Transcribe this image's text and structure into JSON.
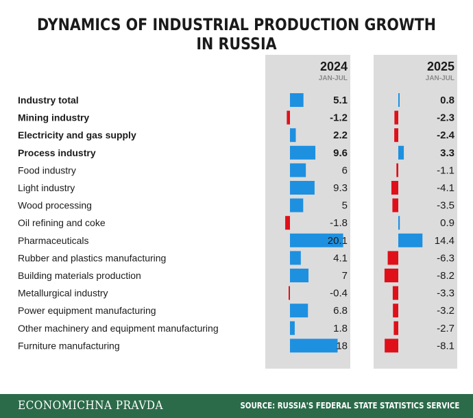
{
  "chart_data": {
    "type": "bar",
    "title": "DYNAMICS OF INDUSTRIAL PRODUCTION GROWTH IN RUSSIA",
    "categories": [
      "Industry total",
      "Mining industry",
      "Electricity and gas supply",
      "Process industry",
      "Food industry",
      "Light industry",
      "Wood processing",
      "Oil refining and coke",
      "Pharmaceuticals",
      "Rubber and plastics manufacturing",
      "Building materials production",
      "Metallurgical industry",
      "Power equipment manufacturing",
      "Other machinery and equipment manufacturing",
      "Furniture manufacturing"
    ],
    "bold_categories": [
      0,
      1,
      2,
      3
    ],
    "series": [
      {
        "name": "2024",
        "period": "JAN-JUL",
        "values": [
          5.1,
          -1.2,
          2.2,
          9.6,
          6,
          9.3,
          5,
          -1.8,
          20.1,
          4.1,
          7,
          -0.4,
          6.8,
          1.8,
          18
        ]
      },
      {
        "name": "2025",
        "period": "JAN-JUL",
        "values": [
          0.8,
          -2.3,
          -2.4,
          3.3,
          -1.1,
          -4.1,
          -3.5,
          0.9,
          14.4,
          -6.3,
          -8.2,
          -3.3,
          -3.2,
          -2.7,
          -8.1
        ]
      }
    ],
    "positive_color": "#1e90e0",
    "negative_color": "#e0101a",
    "panel_color": "#dcdcdc"
  },
  "footer": {
    "brand": "ECONOMICHNA PRAVDA",
    "source": "SOURCE: RUSSIA'S FEDERAL STATE STATISTICS SERVICE"
  }
}
